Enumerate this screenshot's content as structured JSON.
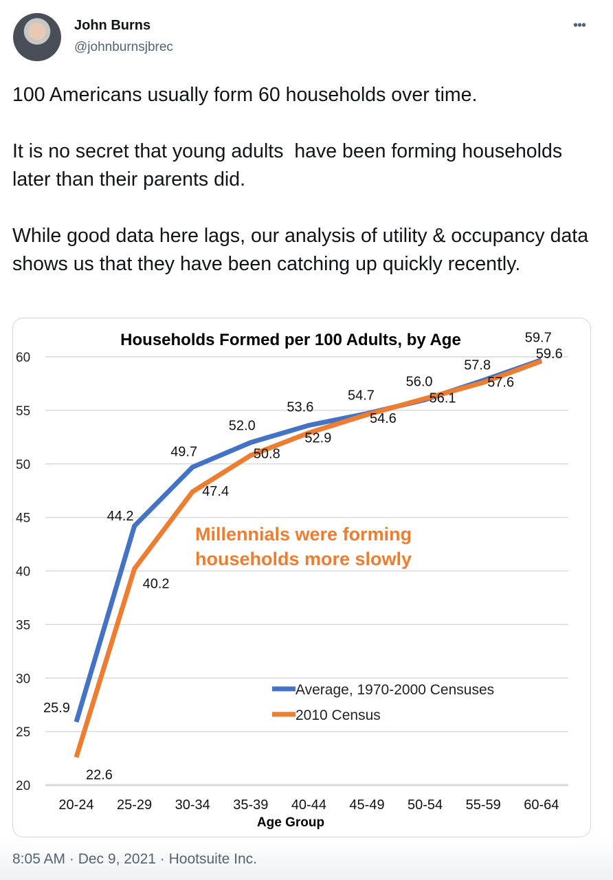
{
  "tweet": {
    "author_name": "John Burns",
    "handle": "@johnburnsjbrec",
    "more_icon": "more-horizontal-icon",
    "text": "100 Americans usually form 60 households over time.\n\nIt is no secret that young adults  have been forming households later than their parents did.\n\nWhile good data here lags, our analysis of utility & occupancy data shows us that they have been catching up quickly recently.",
    "timestamp": "8:05 AM · Dec 9, 2021 · Hootsuite Inc."
  },
  "chart_data": {
    "type": "line",
    "title": "Households Formed per 100 Adults, by Age",
    "xlabel": "Age Group",
    "ylabel": "",
    "categories": [
      "20-24",
      "25-29",
      "30-34",
      "35-39",
      "40-44",
      "45-49",
      "50-54",
      "55-59",
      "60-64"
    ],
    "ylim": [
      20,
      60
    ],
    "yticks": [
      20,
      25,
      30,
      35,
      40,
      45,
      50,
      55,
      60
    ],
    "grid": true,
    "legend": "center-right",
    "annotation": [
      "Millennials were forming",
      "households more slowly"
    ],
    "annotation_color": "#ed7d31",
    "series": [
      {
        "name": "Average, 1970-2000 Censuses",
        "color": "#4472c4",
        "values": [
          25.9,
          44.2,
          49.7,
          52.0,
          53.6,
          54.7,
          56.0,
          57.8,
          59.7
        ],
        "labels": [
          "25.9",
          "44.2",
          "49.7",
          "52.0",
          "53.6",
          "54.7",
          "56.0",
          "57.8",
          "59.7"
        ]
      },
      {
        "name": "2010 Census",
        "color": "#ed7d31",
        "values": [
          22.6,
          40.2,
          47.4,
          50.8,
          52.9,
          54.6,
          56.1,
          57.6,
          59.6
        ],
        "labels": [
          "22.6",
          "40.2",
          "47.4",
          "50.8",
          "52.9",
          "54.6",
          "56.1",
          "57.6",
          "59.6"
        ]
      }
    ]
  }
}
